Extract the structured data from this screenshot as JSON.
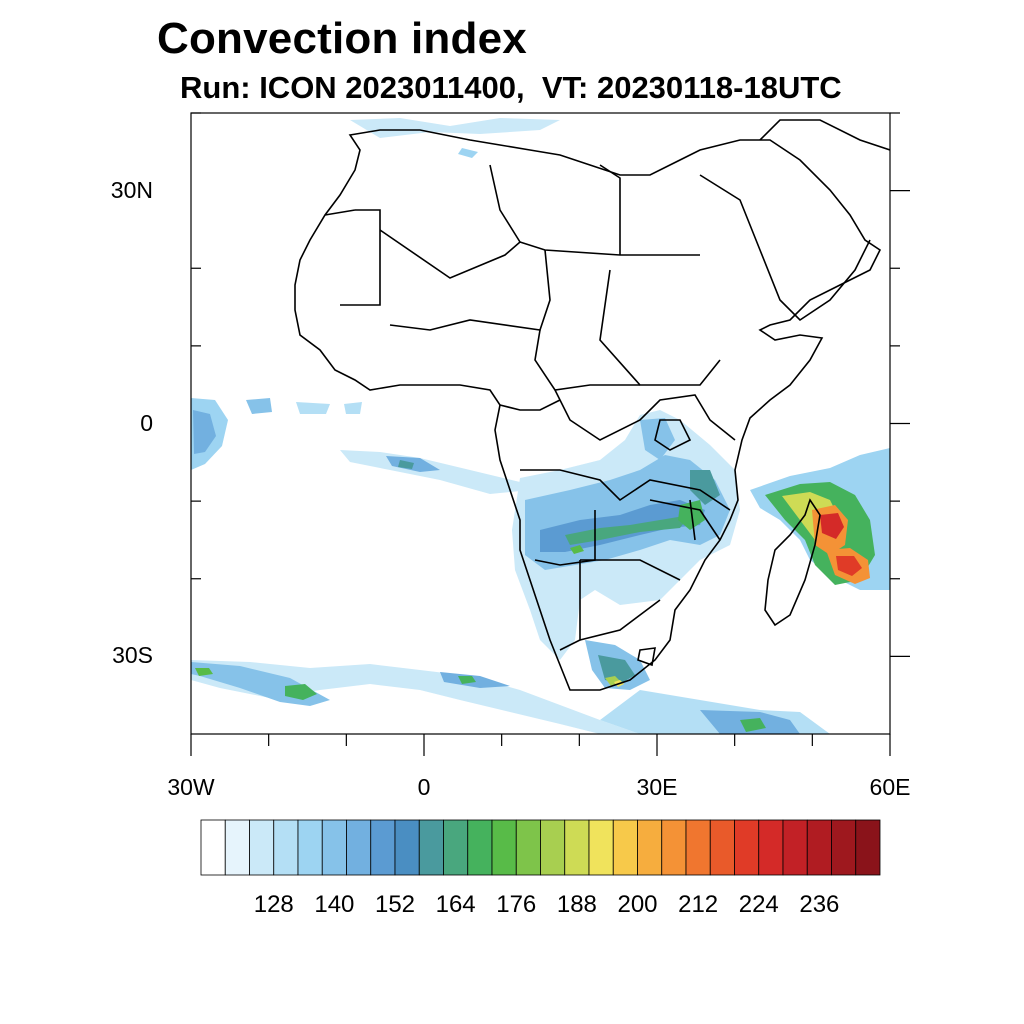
{
  "title": "Convection index",
  "subtitle": "Run: ICON 2023011400,  VT: 20230118-18UTC",
  "map": {
    "extent": {
      "lon_min": -30,
      "lon_max": 60,
      "lat_min": -40,
      "lat_max": 40
    },
    "lat_ticks": [
      {
        "value": 30,
        "label": "30N"
      },
      {
        "value": 0,
        "label": "0"
      },
      {
        "value": -30,
        "label": "30S"
      }
    ],
    "lon_ticks": [
      {
        "value": -30,
        "label": "30W"
      },
      {
        "value": 0,
        "label": "0"
      },
      {
        "value": 30,
        "label": "30E"
      },
      {
        "value": 60,
        "label": "60E"
      }
    ]
  },
  "colorbar": {
    "colors": [
      "#ffffff",
      "#e6f4fc",
      "#cbe9f8",
      "#b4dff5",
      "#9dd4f2",
      "#86c2e9",
      "#72b0e0",
      "#5b9bd2",
      "#4a8ec2",
      "#4a9a9e",
      "#49a77e",
      "#45b25d",
      "#58bb48",
      "#7ec44a",
      "#a8cf50",
      "#cedb55",
      "#f0e35c",
      "#f7c94a",
      "#f6ad3e",
      "#f49236",
      "#f0762f",
      "#e95a2a",
      "#e03b27",
      "#d42a28",
      "#c22126",
      "#b01c22",
      "#9e181e",
      "#8a131a"
    ],
    "tick_labels": [
      "128",
      "140",
      "152",
      "164",
      "176",
      "188",
      "200",
      "212",
      "224",
      "236"
    ]
  }
}
